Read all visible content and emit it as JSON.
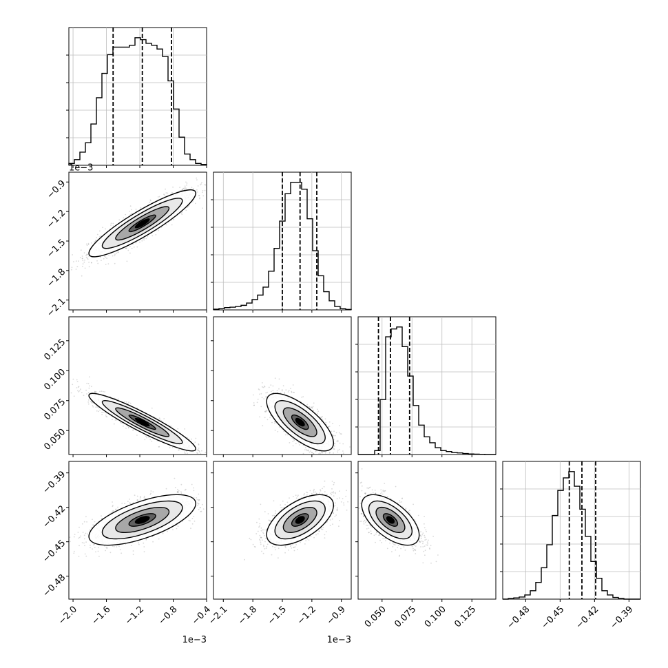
{
  "chart_data": {
    "type": "corner",
    "grid": true,
    "hist_color": "#000000",
    "contour_color": "#000000",
    "offset_label": "1e−3",
    "params": [
      {
        "range": [
          -2.05,
          -0.4
        ],
        "ticks": [
          -2.0,
          -1.6,
          -1.2,
          -0.8,
          -0.4
        ],
        "tick_labels": [
          "−2.0",
          "−1.6",
          "−1.2",
          "−0.8",
          "−0.4"
        ],
        "quantiles": [
          -1.52,
          -1.17,
          -0.82
        ],
        "median": -1.17,
        "sd": 0.32
      },
      {
        "range": [
          -2.2,
          -0.8
        ],
        "ticks": [
          -2.1,
          -1.8,
          -1.5,
          -1.2,
          -0.9
        ],
        "tick_labels": [
          "−2.1",
          "−1.8",
          "−1.5",
          "−1.2",
          "−0.9"
        ],
        "quantiles": [
          -1.5,
          -1.32,
          -1.15
        ],
        "median": -1.32,
        "sd": 0.17
      },
      {
        "range": [
          0.03,
          0.145
        ],
        "ticks": [
          0.05,
          0.075,
          0.1,
          0.125
        ],
        "tick_labels": [
          "0.050",
          "0.075",
          "0.100",
          "0.125"
        ],
        "quantiles": [
          0.047,
          0.057,
          0.073
        ],
        "median": 0.057,
        "sd": 0.012
      },
      {
        "range": [
          -0.5,
          -0.38
        ],
        "ticks": [
          -0.48,
          -0.45,
          -0.42,
          -0.39
        ],
        "tick_labels": [
          "−0.48",
          "−0.45",
          "−0.42",
          "−0.39"
        ],
        "quantiles": [
          -0.442,
          -0.431,
          -0.419
        ],
        "median": -0.431,
        "sd": 0.011
      }
    ],
    "histograms": [
      {
        "param": 0,
        "counts": [
          1,
          3,
          7,
          12,
          22,
          36,
          49,
          59,
          63,
          63,
          63,
          64,
          68,
          67,
          65,
          64,
          62,
          58,
          45,
          30,
          15,
          6,
          3,
          1,
          0.5
        ]
      },
      {
        "param": 1,
        "counts": [
          0.3,
          0.6,
          1,
          1.2,
          1.5,
          2,
          3,
          4.5,
          6.5,
          10,
          17,
          27,
          39,
          51,
          56,
          56,
          53,
          40,
          26,
          15,
          8,
          4,
          1.5,
          0.5,
          0.2
        ]
      },
      {
        "param": 2,
        "counts": [
          0,
          0,
          0,
          2,
          28,
          60,
          64,
          65,
          55,
          40,
          25,
          15,
          9,
          6,
          3.5,
          2,
          1.5,
          1,
          0.8,
          0.5,
          0.3,
          0.2,
          0.1,
          0,
          0
        ]
      },
      {
        "param": 3,
        "counts": [
          0,
          0.3,
          0.6,
          1,
          2,
          4,
          8,
          15,
          26,
          40,
          52,
          58,
          61,
          54,
          43,
          30,
          18,
          10,
          4,
          2,
          0.8,
          0.3,
          0,
          0,
          0
        ]
      }
    ],
    "pairs": [
      {
        "x_param": 0,
        "y_param": 1,
        "rho": 0.9
      },
      {
        "x_param": 0,
        "y_param": 2,
        "rho": -0.93
      },
      {
        "x_param": 1,
        "y_param": 2,
        "rho": -0.72
      },
      {
        "x_param": 0,
        "y_param": 3,
        "rho": 0.65
      },
      {
        "x_param": 1,
        "y_param": 3,
        "rho": 0.58
      },
      {
        "x_param": 2,
        "y_param": 3,
        "rho": -0.6
      }
    ]
  }
}
